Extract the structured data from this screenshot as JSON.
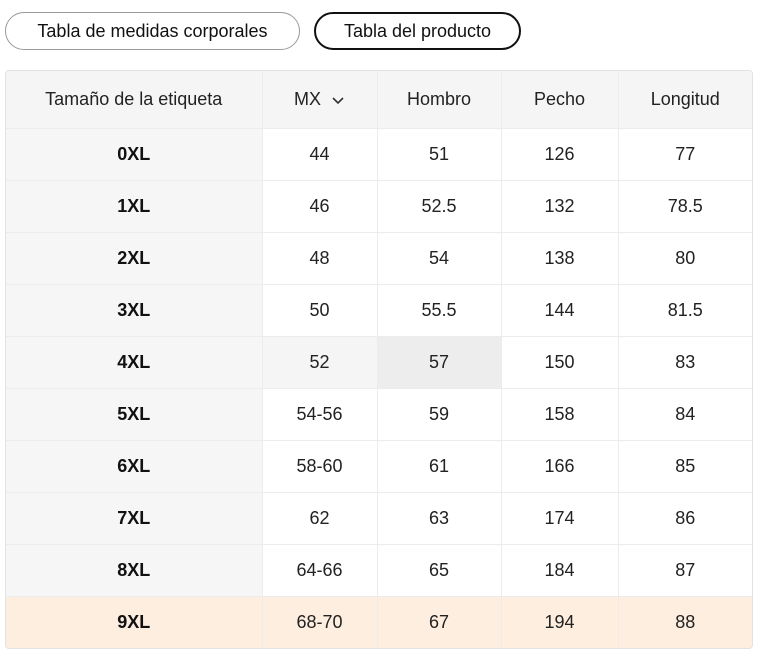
{
  "tabs": [
    {
      "label": "Tabla de medidas corporales",
      "active": false
    },
    {
      "label": "Tabla del producto",
      "active": true
    }
  ],
  "table": {
    "headers": {
      "size": "Tamaño de la etiqueta",
      "unit": "MX",
      "shoulder": "Hombro",
      "chest": "Pecho",
      "length": "Longitud"
    },
    "rows": [
      [
        "0XL",
        "44",
        "51",
        "126",
        "77"
      ],
      [
        "1XL",
        "46",
        "52.5",
        "132",
        "78.5"
      ],
      [
        "2XL",
        "48",
        "54",
        "138",
        "80"
      ],
      [
        "3XL",
        "50",
        "55.5",
        "144",
        "81.5"
      ],
      [
        "4XL",
        "52",
        "57",
        "150",
        "83"
      ],
      [
        "5XL",
        "54-56",
        "59",
        "158",
        "84"
      ],
      [
        "6XL",
        "58-60",
        "61",
        "166",
        "85"
      ],
      [
        "7XL",
        "62",
        "63",
        "174",
        "86"
      ],
      [
        "8XL",
        "64-66",
        "65",
        "184",
        "87"
      ],
      [
        "9XL",
        "68-70",
        "67",
        "194",
        "88"
      ]
    ]
  },
  "icons": {
    "unit_dropdown": "chevron-down-icon"
  },
  "colors": {
    "highlight_row": "#fdeedf",
    "header_bg": "#f5f5f5",
    "hover_cell": "#ededed"
  }
}
